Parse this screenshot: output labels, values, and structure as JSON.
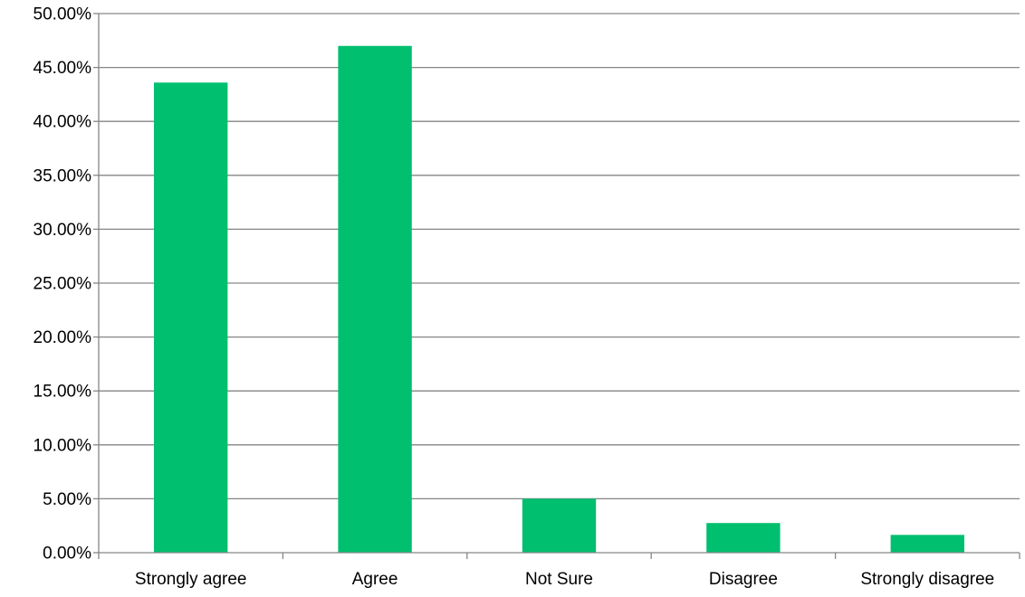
{
  "chart_data": {
    "type": "bar",
    "categories": [
      "Strongly agree",
      "Agree",
      "Not Sure",
      "Disagree",
      "Strongly disagree"
    ],
    "values": [
      43.6,
      47.0,
      5.0,
      2.75,
      1.65
    ],
    "unit": "%",
    "ylim": [
      0,
      50
    ],
    "y_ticks": [
      "0.00%",
      "5.00%",
      "10.00%",
      "15.00%",
      "20.00%",
      "25.00%",
      "30.00%",
      "35.00%",
      "40.00%",
      "45.00%",
      "50.00%"
    ],
    "title": "",
    "xlabel": "",
    "ylabel": "",
    "grid": true,
    "legend": "none",
    "colors": {
      "bar": "#00BF6F",
      "grid": "#868686",
      "text": "#000000"
    }
  }
}
